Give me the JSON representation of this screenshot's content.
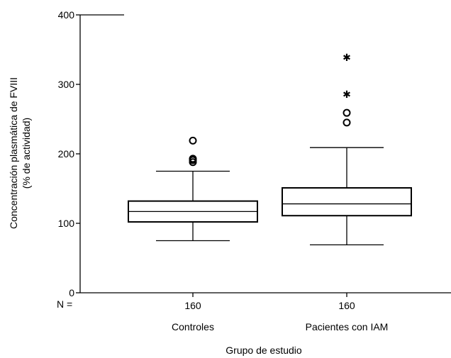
{
  "chart_data": {
    "type": "boxplot",
    "ylabel_line1": "Concentración plasmática de FVIII",
    "ylabel_line2": "(% de actividad)",
    "xlabel": "Grupo de estudio",
    "ylim": [
      0,
      400
    ],
    "yticks": [
      0,
      100,
      200,
      300,
      400
    ],
    "n_label": "N =",
    "groups": [
      {
        "name": "Controles",
        "n": "160",
        "whisker_low": 75,
        "q1": 102,
        "median": 117,
        "q3": 132,
        "whisker_high": 175,
        "outliers": [
          188,
          191,
          193,
          219
        ],
        "extremes": []
      },
      {
        "name": "Pacientes con IAM",
        "n": "160",
        "whisker_low": 69,
        "q1": 111,
        "median": 128,
        "q3": 151,
        "whisker_high": 209,
        "outliers": [
          245,
          259
        ],
        "extremes": [
          289,
          342
        ]
      }
    ]
  }
}
